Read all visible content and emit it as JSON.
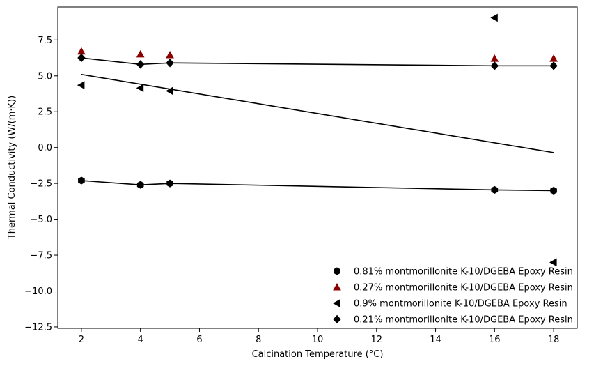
{
  "chart_data": {
    "type": "scatter",
    "xlabel": "Calcination Temperature (°C)",
    "ylabel": "Thermal Conductivity (W/(m·K))",
    "xlim": [
      1.2,
      18.8
    ],
    "ylim": [
      -12.6,
      9.8
    ],
    "xticks": [
      2,
      4,
      6,
      8,
      10,
      12,
      14,
      16,
      18
    ],
    "yticks": [
      -12.5,
      -10.0,
      -7.5,
      -5.0,
      -2.5,
      0.0,
      2.5,
      5.0,
      7.5
    ],
    "grid": false,
    "legend_position": "bottom-right",
    "series": [
      {
        "name": "0.81% montmorillonite K-10/DGEBA Epoxy Resin",
        "marker": "hexagon",
        "color": "#000000",
        "x": [
          2,
          4,
          5,
          16,
          18
        ],
        "y": [
          -2.3,
          -2.6,
          -2.5,
          -2.95,
          -3.0
        ],
        "fit": {
          "type": "connected",
          "x": [
            2,
            4,
            5,
            16,
            18
          ],
          "y": [
            -2.3,
            -2.6,
            -2.5,
            -2.95,
            -3.0
          ]
        }
      },
      {
        "name": "0.27% montmorillonite K-10/DGEBA Epoxy Resin",
        "marker": "triangle-up",
        "color": "#8b0000",
        "x": [
          2,
          4,
          5,
          16,
          18
        ],
        "y": [
          6.7,
          6.5,
          6.45,
          6.2,
          6.2
        ]
      },
      {
        "name": "0.9% montmorillonite K-10/DGEBA Epoxy Resin",
        "marker": "triangle-left",
        "color": "#000000",
        "x": [
          2,
          4,
          5,
          16,
          18
        ],
        "y": [
          4.35,
          4.15,
          3.95,
          9.05,
          -8.0
        ],
        "fit": {
          "type": "linear",
          "x": [
            2,
            18
          ],
          "y": [
            5.1,
            -0.35
          ]
        }
      },
      {
        "name": "0.21% montmorillonite K-10/DGEBA Epoxy Resin",
        "marker": "diamond",
        "color": "#000000",
        "x": [
          2,
          4,
          5,
          16,
          18
        ],
        "y": [
          6.25,
          5.8,
          5.9,
          5.7,
          5.7
        ],
        "fit": {
          "type": "connected",
          "x": [
            2,
            4,
            5,
            16,
            18
          ],
          "y": [
            6.25,
            5.8,
            5.9,
            5.7,
            5.7
          ]
        }
      }
    ]
  }
}
